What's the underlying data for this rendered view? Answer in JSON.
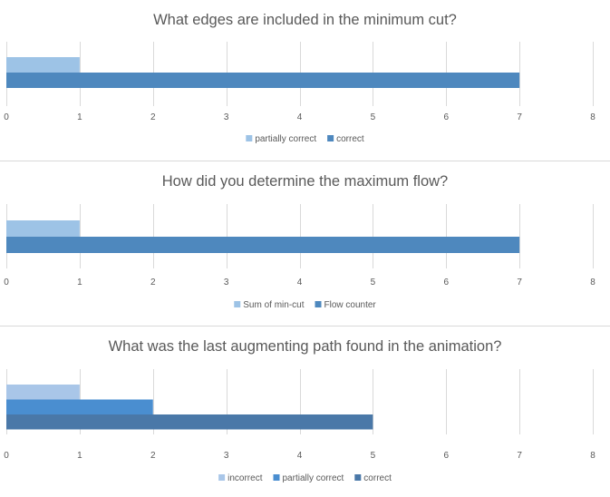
{
  "chart_data": [
    {
      "type": "bar",
      "orientation": "horizontal",
      "title": "What edges are included in the minimum cut?",
      "xlim": [
        0,
        8
      ],
      "x_ticks": [
        "0",
        "1",
        "2",
        "3",
        "4",
        "5",
        "6",
        "7",
        "8"
      ],
      "grid": true,
      "legend_position": "bottom",
      "series": [
        {
          "name": "partially correct",
          "values": [
            1
          ],
          "color": "#9dc3e6"
        },
        {
          "name": "correct",
          "values": [
            7
          ],
          "color": "#4e88be"
        }
      ]
    },
    {
      "type": "bar",
      "orientation": "horizontal",
      "title": "How did you determine the maximum flow?",
      "xlim": [
        0,
        8
      ],
      "x_ticks": [
        "0",
        "1",
        "2",
        "3",
        "4",
        "5",
        "6",
        "7",
        "8"
      ],
      "grid": true,
      "legend_position": "bottom",
      "series": [
        {
          "name": "Sum of min-cut",
          "values": [
            1
          ],
          "color": "#9dc3e6"
        },
        {
          "name": "Flow counter",
          "values": [
            7
          ],
          "color": "#4e88be"
        }
      ]
    },
    {
      "type": "bar",
      "orientation": "horizontal",
      "title": "What was the last augmenting path found in the animation?",
      "xlim": [
        0,
        8
      ],
      "x_ticks": [
        "0",
        "1",
        "2",
        "3",
        "4",
        "5",
        "6",
        "7",
        "8"
      ],
      "grid": true,
      "legend_position": "bottom",
      "series": [
        {
          "name": "incorrect",
          "values": [
            1
          ],
          "color": "#a9c6e8"
        },
        {
          "name": "partially correct",
          "values": [
            2
          ],
          "color": "#4a8ed0"
        },
        {
          "name": "correct",
          "values": [
            5
          ],
          "color": "#4a78a8"
        }
      ]
    }
  ]
}
